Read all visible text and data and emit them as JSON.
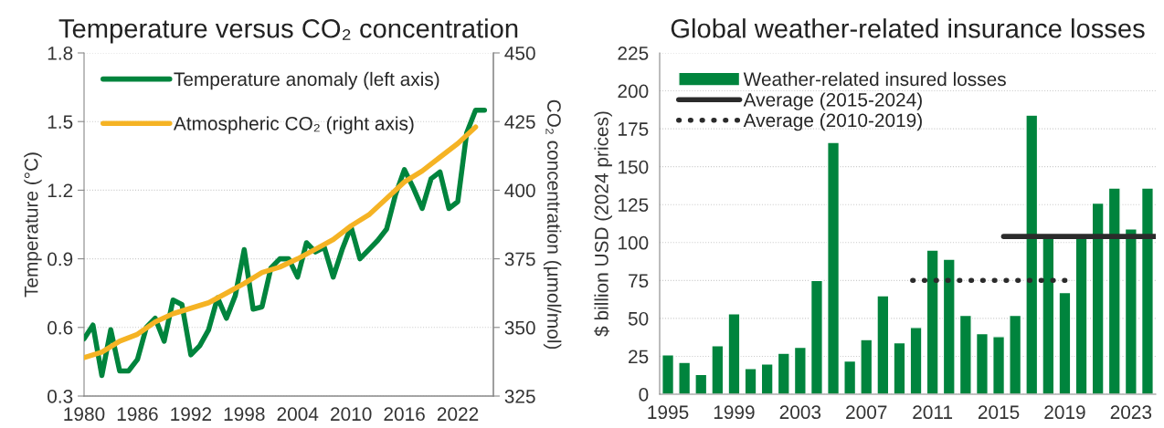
{
  "chart_data": [
    {
      "type": "line",
      "title": "Temperature versus CO₂ concentration",
      "ylabel": "Temperature (°C)",
      "y2label": "CO₂ concentration (µmol/mol)",
      "xlim": [
        1980,
        2026
      ],
      "xticks": [
        1980,
        1986,
        1992,
        1998,
        2004,
        2010,
        2016,
        2022
      ],
      "ylim": [
        0.3,
        1.8
      ],
      "yticks": [
        0.3,
        0.6,
        0.9,
        1.2,
        1.5,
        1.8
      ],
      "y2lim": [
        325,
        450
      ],
      "y2ticks": [
        325,
        350,
        375,
        400,
        425,
        450
      ],
      "grid": "y",
      "legend": "top left",
      "line_style": "solid",
      "series": [
        {
          "name": "Temperature anomaly (left axis)",
          "color": "#00843d",
          "x": [
            1980,
            1981,
            1982,
            1983,
            1984,
            1985,
            1986,
            1987,
            1988,
            1989,
            1990,
            1991,
            1992,
            1993,
            1994,
            1995,
            1996,
            1997,
            1998,
            1999,
            2000,
            2001,
            2002,
            2003,
            2004,
            2005,
            2006,
            2007,
            2008,
            2009,
            2010,
            2011,
            2012,
            2013,
            2014,
            2015,
            2016,
            2017,
            2018,
            2019,
            2020,
            2021,
            2022,
            2023,
            2024,
            2025
          ],
          "values": [
            0.55,
            0.61,
            0.39,
            0.59,
            0.41,
            0.41,
            0.46,
            0.6,
            0.64,
            0.54,
            0.72,
            0.7,
            0.48,
            0.52,
            0.59,
            0.73,
            0.64,
            0.74,
            0.94,
            0.68,
            0.69,
            0.86,
            0.9,
            0.9,
            0.82,
            0.97,
            0.93,
            0.95,
            0.82,
            0.94,
            1.04,
            0.9,
            0.94,
            0.98,
            1.03,
            1.18,
            1.29,
            1.21,
            1.12,
            1.25,
            1.28,
            1.12,
            1.15,
            1.45,
            1.55,
            1.55
          ]
        },
        {
          "name": "Atmospheric CO₂ (right axis)",
          "color": "#f5b324",
          "axis": "y2",
          "x": [
            1980,
            1982,
            1984,
            1986,
            1988,
            1990,
            1992,
            1994,
            1996,
            1998,
            2000,
            2002,
            2004,
            2006,
            2008,
            2010,
            2012,
            2014,
            2016,
            2018,
            2020,
            2022,
            2024
          ],
          "values": [
            339,
            341,
            345,
            347.5,
            352,
            355,
            357,
            359,
            362.5,
            366,
            370,
            372,
            375,
            378.5,
            382,
            387,
            391,
            397,
            403,
            407,
            412,
            417,
            423
          ]
        }
      ]
    },
    {
      "type": "bar",
      "title": "Global weather-related insurance losses",
      "ylabel": "$ billion USD (2024 prices)",
      "xlim": [
        1994.5,
        2024.5
      ],
      "xticks": [
        1995,
        1999,
        2003,
        2007,
        2011,
        2015,
        2019,
        2023
      ],
      "ylim": [
        0,
        225
      ],
      "yticks": [
        0,
        25,
        50,
        75,
        100,
        125,
        150,
        175,
        200,
        225
      ],
      "grid": "y",
      "legend": "top left",
      "series": [
        {
          "name": "Weather-related insured losses",
          "color": "#00843d",
          "x": [
            1995,
            1996,
            1997,
            1998,
            1999,
            2000,
            2001,
            2002,
            2003,
            2004,
            2005,
            2006,
            2007,
            2008,
            2009,
            2010,
            2011,
            2012,
            2013,
            2014,
            2015,
            2016,
            2017,
            2018,
            2019,
            2020,
            2021,
            2022,
            2023,
            2024
          ],
          "values": [
            26,
            21,
            13,
            32,
            53,
            17,
            20,
            27,
            31,
            75,
            166,
            22,
            36,
            65,
            34,
            44,
            95,
            89,
            52,
            40,
            38,
            52,
            184,
            104,
            67,
            104,
            126,
            136,
            109,
            136
          ]
        },
        {
          "name": "Average (2015-2024)",
          "type": "line",
          "line_style": "solid",
          "color": "#2b2b2b",
          "x": [
            2015.3,
            2024.5
          ],
          "values": [
            104,
            104
          ]
        },
        {
          "name": "Average (2010-2019)",
          "type": "line",
          "line_style": "dotted",
          "color": "#2b2b2b",
          "x": [
            2009.8,
            2019.2
          ],
          "values": [
            75,
            75
          ]
        }
      ]
    }
  ]
}
